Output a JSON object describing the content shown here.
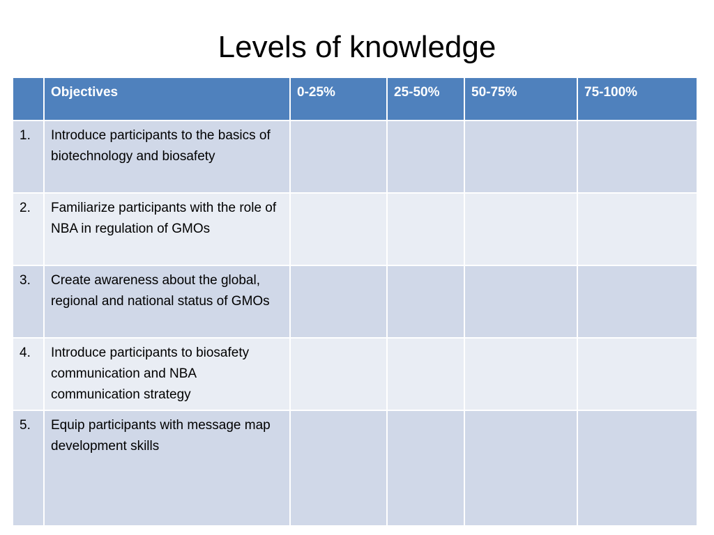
{
  "title": "Levels of knowledge",
  "table": {
    "headers": [
      "",
      "Objectives",
      "0-25%",
      "25-50%",
      "50-75%",
      "75-100%"
    ],
    "rows": [
      {
        "num": "1.",
        "objective": "Introduce participants to the basics of biotechnology and biosafety"
      },
      {
        "num": "2.",
        "objective": "Familiarize  participants with the role of NBA in regulation of GMOs"
      },
      {
        "num": "3.",
        "objective": "Create awareness about the global, regional and  national status of GMOs"
      },
      {
        "num": "4.",
        "objective": "Introduce participants to biosafety communication and NBA communication strategy"
      },
      {
        "num": "5.",
        "objective": "Equip participants with message map development skills"
      }
    ]
  },
  "colors": {
    "header_bg": "#4f81bd",
    "row_odd_bg": "#d0d8e8",
    "row_even_bg": "#e9edf4"
  }
}
